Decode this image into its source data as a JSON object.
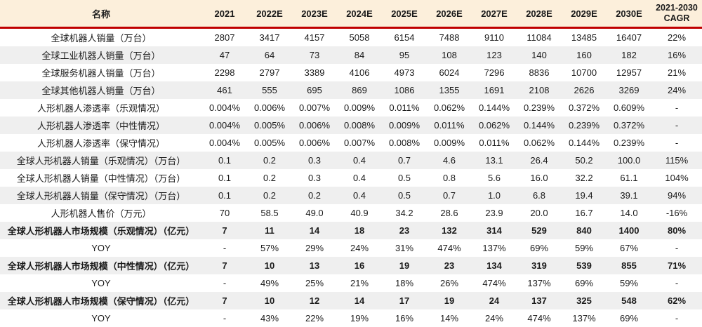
{
  "table": {
    "header": {
      "name_col": "名称",
      "year_cols": [
        "2021",
        "2022E",
        "2023E",
        "2024E",
        "2025E",
        "2026E",
        "2027E",
        "2028E",
        "2029E",
        "2030E"
      ],
      "cagr_line1": "2021-2030",
      "cagr_line2": "CAGR"
    },
    "rows": [
      {
        "label": "全球机器人销量（万台）",
        "bold": false,
        "values": [
          "2807",
          "3417",
          "4157",
          "5058",
          "6154",
          "7488",
          "9110",
          "11084",
          "13485",
          "16407",
          "22%"
        ]
      },
      {
        "label": "全球工业机器人销量（万台）",
        "bold": false,
        "values": [
          "47",
          "64",
          "73",
          "84",
          "95",
          "108",
          "123",
          "140",
          "160",
          "182",
          "16%"
        ]
      },
      {
        "label": "全球服务机器人销量（万台）",
        "bold": false,
        "values": [
          "2298",
          "2797",
          "3389",
          "4106",
          "4973",
          "6024",
          "7296",
          "8836",
          "10700",
          "12957",
          "21%"
        ]
      },
      {
        "label": "全球其他机器人销量（万台）",
        "bold": false,
        "values": [
          "461",
          "555",
          "695",
          "869",
          "1086",
          "1355",
          "1691",
          "2108",
          "2626",
          "3269",
          "24%"
        ]
      },
      {
        "label": "人形机器人渗透率（乐观情况）",
        "bold": false,
        "values": [
          "0.004%",
          "0.006%",
          "0.007%",
          "0.009%",
          "0.011%",
          "0.062%",
          "0.144%",
          "0.239%",
          "0.372%",
          "0.609%",
          "-"
        ]
      },
      {
        "label": "人形机器人渗透率（中性情况）",
        "bold": false,
        "values": [
          "0.004%",
          "0.005%",
          "0.006%",
          "0.008%",
          "0.009%",
          "0.011%",
          "0.062%",
          "0.144%",
          "0.239%",
          "0.372%",
          "-"
        ]
      },
      {
        "label": "人形机器人渗透率（保守情况）",
        "bold": false,
        "values": [
          "0.004%",
          "0.005%",
          "0.006%",
          "0.007%",
          "0.008%",
          "0.009%",
          "0.011%",
          "0.062%",
          "0.144%",
          "0.239%",
          "-"
        ]
      },
      {
        "label": "全球人形机器人销量（乐观情况）（万台）",
        "bold": false,
        "values": [
          "0.1",
          "0.2",
          "0.3",
          "0.4",
          "0.7",
          "4.6",
          "13.1",
          "26.4",
          "50.2",
          "100.0",
          "115%"
        ]
      },
      {
        "label": "全球人形机器人销量（中性情况）（万台）",
        "bold": false,
        "values": [
          "0.1",
          "0.2",
          "0.3",
          "0.4",
          "0.5",
          "0.8",
          "5.6",
          "16.0",
          "32.2",
          "61.1",
          "104%"
        ]
      },
      {
        "label": "全球人形机器人销量（保守情况）（万台）",
        "bold": false,
        "values": [
          "0.1",
          "0.2",
          "0.2",
          "0.4",
          "0.5",
          "0.7",
          "1.0",
          "6.8",
          "19.4",
          "39.1",
          "94%"
        ]
      },
      {
        "label": "人形机器人售价（万元）",
        "bold": false,
        "values": [
          "70",
          "58.5",
          "49.0",
          "40.9",
          "34.2",
          "28.6",
          "23.9",
          "20.0",
          "16.7",
          "14.0",
          "-16%"
        ]
      },
      {
        "label": "全球人形机器人市场规模（乐观情况）（亿元）",
        "bold": true,
        "values": [
          "7",
          "11",
          "14",
          "18",
          "23",
          "132",
          "314",
          "529",
          "840",
          "1400",
          "80%"
        ]
      },
      {
        "label": "YOY",
        "bold": false,
        "values": [
          "-",
          "57%",
          "29%",
          "24%",
          "31%",
          "474%",
          "137%",
          "69%",
          "59%",
          "67%",
          "-"
        ]
      },
      {
        "label": "全球人形机器人市场规模（中性情况）（亿元）",
        "bold": true,
        "values": [
          "7",
          "10",
          "13",
          "16",
          "19",
          "23",
          "134",
          "319",
          "539",
          "855",
          "71%"
        ]
      },
      {
        "label": "YOY",
        "bold": false,
        "values": [
          "-",
          "49%",
          "25%",
          "21%",
          "18%",
          "26%",
          "474%",
          "137%",
          "69%",
          "59%",
          "-"
        ]
      },
      {
        "label": "全球人形机器人市场规模（保守情况）（亿元）",
        "bold": true,
        "values": [
          "7",
          "10",
          "12",
          "14",
          "17",
          "19",
          "24",
          "137",
          "325",
          "548",
          "62%"
        ]
      },
      {
        "label": "YOY",
        "bold": false,
        "values": [
          "-",
          "43%",
          "22%",
          "19%",
          "16%",
          "14%",
          "24%",
          "474%",
          "137%",
          "69%",
          "-"
        ]
      }
    ]
  },
  "colors": {
    "header_bg": "#fcefdb",
    "divider_red": "#c00000",
    "alt_row_bg": "#efefef",
    "text": "#1a1a1a"
  }
}
